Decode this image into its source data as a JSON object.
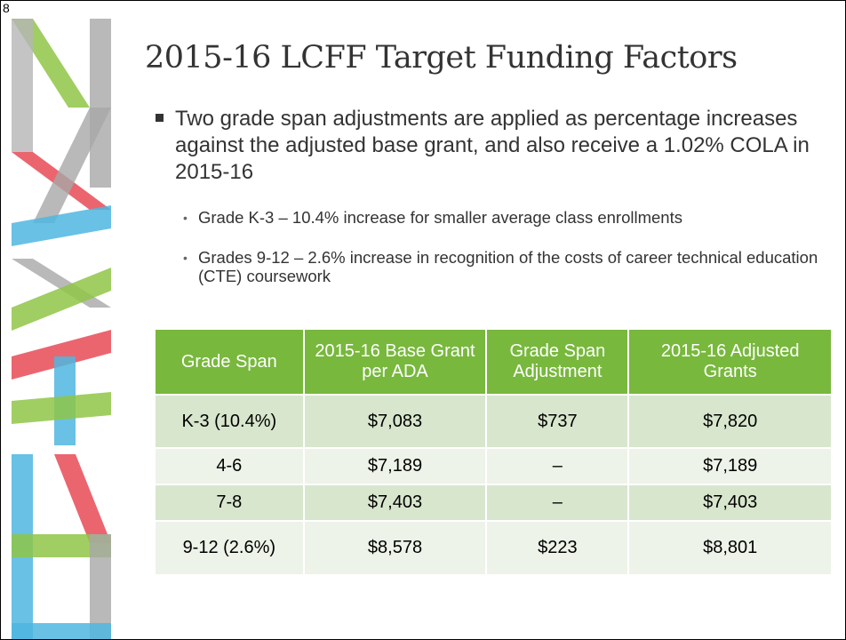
{
  "slide_number": "8",
  "title": "2015-16 LCFF Target Funding Factors",
  "bullets": [
    {
      "text": "Two grade span adjustments are applied as percentage increases against the adjusted base grant, and also receive a 1.02% COLA in 2015-16",
      "sub_bullets": [
        "Grade K-3 – 10.4% increase for smaller average class enrollments",
        "Grades 9-12 – 2.6% increase in recognition of the costs of career technical education (CTE) coursework"
      ]
    }
  ],
  "table": {
    "header": [
      "Grade Span",
      "2015-16 Base Grant per ADA",
      "Grade Span Adjustment",
      "2015-16 Adjusted Grants"
    ],
    "rows": [
      [
        "K-3 (10.4%)",
        "$7,083",
        "$737",
        "$7,820"
      ],
      [
        "4-6",
        "$7,189",
        "–",
        "$7,189"
      ],
      [
        "7-8",
        "$7,403",
        "–",
        "$7,403"
      ],
      [
        "9-12 (2.6%)",
        "$8,578",
        "$223",
        "$8,801"
      ]
    ]
  }
}
